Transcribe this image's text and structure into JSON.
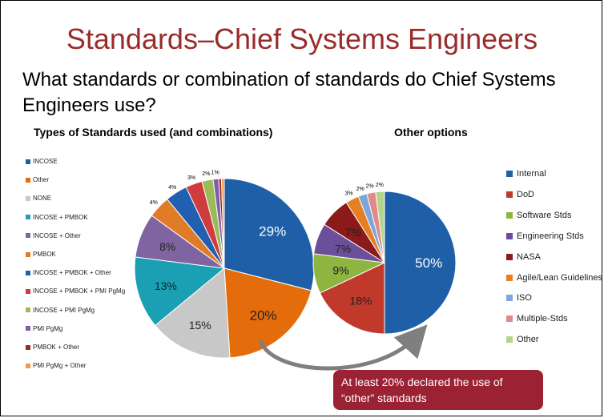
{
  "title": "Standards–Chief Systems Engineers",
  "question": "What standards or combination of standards do Chief Systems Engineers use?",
  "callout": "At least 20% declared the use of “other” standards",
  "chart_data": [
    {
      "type": "pie",
      "title": "Types of Standards used (and combinations)",
      "categories": [
        "INCOSE",
        "Other",
        "NONE",
        "INCOSE + PMBOK",
        "INCOSE + Other",
        "PMBOK",
        "INCOSE + PMBOK + Other",
        "INCOSE + PMBOK + PMI PgMg",
        "INCOSE + PMI PgMg",
        "PMI PgMg",
        "PMBOK + Other",
        "PMI PgMg + Other"
      ],
      "values": [
        29,
        20,
        15,
        13,
        8,
        4,
        4,
        3,
        2,
        1,
        0.5,
        0.5
      ],
      "labels": [
        "29%",
        "20%",
        "15%",
        "13%",
        "8%",
        "4%",
        "4%",
        "3%",
        "2%",
        "1%",
        "",
        ""
      ],
      "colors": [
        "#1f5fa8",
        "#e46c0a",
        "#c8c8c8",
        "#1a9fb3",
        "#8064a2",
        "#e07b26",
        "#2160b0",
        "#d03b3b",
        "#9bbb59",
        "#7f5fa8",
        "#9b2b2b",
        "#f79646"
      ],
      "legend": "left"
    },
    {
      "type": "pie",
      "title": "Other options",
      "categories": [
        "Internal",
        "DoD",
        "Software Stds",
        "Engineering Stds",
        "NASA",
        "Agile/Lean Guidelines",
        "ISO",
        "Multiple-Stds",
        "Other"
      ],
      "values": [
        50,
        18,
        9,
        7,
        7,
        3,
        2,
        2,
        2
      ],
      "labels": [
        "50%",
        "18%",
        "9%",
        "7%",
        "7%",
        "3%",
        "2%",
        "2%",
        "2%"
      ],
      "colors": [
        "#1f5fa8",
        "#c0392b",
        "#8db53f",
        "#6b4f9a",
        "#8b1a1a",
        "#e67e22",
        "#7da7d9",
        "#e08a8a",
        "#b5d68a"
      ],
      "legend": "right"
    }
  ]
}
